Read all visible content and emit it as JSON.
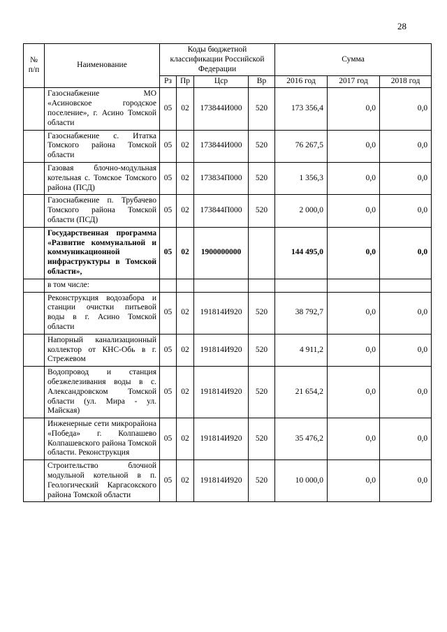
{
  "page": {
    "number": "28"
  },
  "table": {
    "header": {
      "col_num_line1": "№",
      "col_num_line2": "п/п",
      "col_name": "Наименование",
      "codes_group": "Коды бюджетной классификации Российской Федерации",
      "sum_group": "Сумма",
      "sub": [
        "Рз",
        "Пр",
        "Цср",
        "Вр",
        "2016 год",
        "2017 год",
        "2018 год"
      ]
    },
    "rows": [
      {
        "num": "",
        "name": "Газоснабжение МО «Асиновское городское поселение», г. Асино Томской области",
        "rz": "05",
        "pr": "02",
        "csr": "173844И000",
        "vr": "520",
        "y2016": "173 356,4",
        "y2017": "0,0",
        "y2018": "0,0",
        "bold": false,
        "note": false
      },
      {
        "num": "",
        "name": "Газоснабжение с. Итатка Томского района Томской области",
        "rz": "05",
        "pr": "02",
        "csr": "173844И000",
        "vr": "520",
        "y2016": "76 267,5",
        "y2017": "0,0",
        "y2018": "0,0",
        "bold": false,
        "note": false
      },
      {
        "num": "",
        "name": "Газовая блочно-модульная котельная с. Томское Томского района (ПСД)",
        "rz": "05",
        "pr": "02",
        "csr": "173834П000",
        "vr": "520",
        "y2016": "1 356,3",
        "y2017": "0,0",
        "y2018": "0,0",
        "bold": false,
        "note": false
      },
      {
        "num": "",
        "name": "Газоснабжение п. Трубачево Томского района Томской области (ПСД)",
        "rz": "05",
        "pr": "02",
        "csr": "173844П000",
        "vr": "520",
        "y2016": "2 000,0",
        "y2017": "0,0",
        "y2018": "0,0",
        "bold": false,
        "note": false
      },
      {
        "num": "",
        "name": "Государственная программа «Развитие коммунальной и коммуникационной инфраструктуры в Томской области»,",
        "rz": "05",
        "pr": "02",
        "csr": "1900000000",
        "vr": "",
        "y2016": "144 495,0",
        "y2017": "0,0",
        "y2018": "0,0",
        "bold": true,
        "note": false
      },
      {
        "num": "",
        "name": "в том числе:",
        "rz": "",
        "pr": "",
        "csr": "",
        "vr": "",
        "y2016": "",
        "y2017": "",
        "y2018": "",
        "bold": false,
        "note": true
      },
      {
        "num": "",
        "name": "Реконструкция водозабора и станции очистки питьевой воды в г. Асино Томской области",
        "rz": "05",
        "pr": "02",
        "csr": "191814И920",
        "vr": "520",
        "y2016": "38 792,7",
        "y2017": "0,0",
        "y2018": "0,0",
        "bold": false,
        "note": false
      },
      {
        "num": "",
        "name": "Напорный канализационный коллектор от КНС-Обь в г. Стрежевом",
        "rz": "05",
        "pr": "02",
        "csr": "191814И920",
        "vr": "520",
        "y2016": "4 911,2",
        "y2017": "0,0",
        "y2018": "0,0",
        "bold": false,
        "note": false
      },
      {
        "num": "",
        "name": "Водопровод и станция обезжелезивания воды в с. Александровском Томской области (ул. Мира - ул. Майская)",
        "rz": "05",
        "pr": "02",
        "csr": "191814И920",
        "vr": "520",
        "y2016": "21 654,2",
        "y2017": "0,0",
        "y2018": "0,0",
        "bold": false,
        "note": false
      },
      {
        "num": "",
        "name": "Инженерные сети микрорайона «Победа» г. Колпашево Колпашевского района Томской области. Реконструкция",
        "rz": "05",
        "pr": "02",
        "csr": "191814И920",
        "vr": "520",
        "y2016": "35 476,2",
        "y2017": "0,0",
        "y2018": "0,0",
        "bold": false,
        "note": false
      },
      {
        "num": "",
        "name": "Строительство блочной модульной котельной в п. Геологический Каргасокского района Томской области",
        "rz": "05",
        "pr": "02",
        "csr": "191814И920",
        "vr": "520",
        "y2016": "10 000,0",
        "y2017": "0,0",
        "y2018": "0,0",
        "bold": false,
        "note": false
      }
    ]
  }
}
